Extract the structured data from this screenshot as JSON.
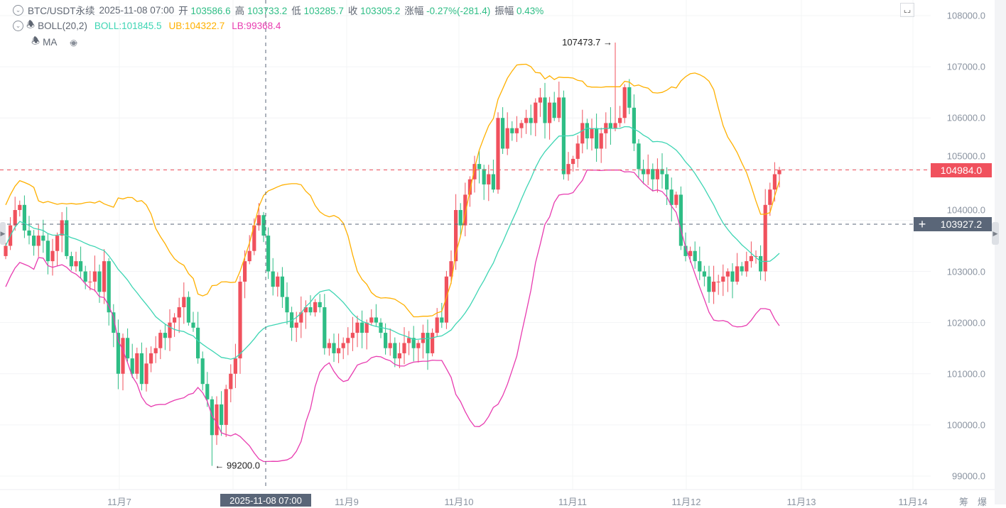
{
  "header": {
    "symbol": "BTC/USDT永续",
    "datetime": "2025-11-08 07:00",
    "open_label": "开",
    "open": "103586.6",
    "high_label": "高",
    "high": "103733.2",
    "low_label": "低",
    "low": "103285.7",
    "close_label": "收",
    "close": "103305.2",
    "change_label": "涨幅",
    "change": "-0.27%(-281.4)",
    "amplitude_label": "振幅",
    "amplitude": "0.43%"
  },
  "indicators": {
    "boll_name": "BOLL(20,2)",
    "boll": "BOLL:101845.5",
    "ub": "UB:104322.7",
    "lb": "LB:99368.4",
    "ma_name": "MA",
    "ma_icon": "eye-off-icon"
  },
  "footer": {
    "chip_label": "筹",
    "liq_label": "爆"
  },
  "colors": {
    "up": "#f0515d",
    "down": "#2ebd85",
    "mid": "#3dd5b3",
    "ub": "#ffb000",
    "lb": "#e83cb0",
    "crosshair": "#5a6678"
  },
  "chart_data": {
    "type": "candlestick",
    "interval": "1h",
    "yaxis_ticks": [
      "108000.0",
      "107000.0",
      "106000.0",
      "105000.0",
      "104000.0",
      "103000.0",
      "102000.0",
      "101000.0",
      "100000.0",
      "99000.0"
    ],
    "yaxis_tick_values": [
      108000,
      107000,
      106000,
      105000,
      104000,
      103000,
      102000,
      101000,
      100000,
      99000
    ],
    "ylim": [
      98990,
      108000
    ],
    "xaxis_ticks": [
      "11月7",
      "11月9",
      "11月10",
      "11月11",
      "11月12",
      "11月13",
      "11月14"
    ],
    "crosshair_time": "2025-11-08 07:00",
    "crosshair_price": "103927.2",
    "last_price": "104984.0",
    "max_label": "107473.7",
    "min_label": "99200.0",
    "bollinger": {
      "period": 20,
      "k": 2
    },
    "closes": [
      103500,
      103900,
      104200,
      104300,
      103800,
      103700,
      103500,
      103700,
      103600,
      103200,
      103400,
      103700,
      104000,
      103300,
      103100,
      103200,
      103000,
      102800,
      102800,
      103000,
      102600,
      103200,
      102200,
      101800,
      101000,
      101700,
      101300,
      101000,
      101400,
      100800,
      101200,
      101400,
      101500,
      101800,
      101700,
      102000,
      102100,
      102300,
      102500,
      102000,
      101900,
      101300,
      100800,
      100500,
      99800,
      100400,
      100000,
      100700,
      101000,
      101300,
      102800,
      103200,
      103400,
      103900,
      104100,
      103700,
      103000,
      102700,
      102900,
      102500,
      102200,
      101900,
      102000,
      102200,
      102300,
      102200,
      102400,
      102300,
      101500,
      101600,
      101400,
      101500,
      101600,
      101700,
      101800,
      102000,
      101800,
      102000,
      102100,
      102000,
      101800,
      101500,
      101600,
      101300,
      101400,
      101600,
      101700,
      101500,
      101600,
      101800,
      101400,
      101800,
      102100,
      102000,
      102900,
      103200,
      104200,
      103900,
      104500,
      104800,
      105100,
      105000,
      104700,
      104900,
      104600,
      106000,
      105400,
      105800,
      105700,
      105800,
      105900,
      106000,
      105900,
      106300,
      106400,
      105900,
      106300,
      106000,
      106400,
      104900,
      105100,
      105200,
      105500,
      105900,
      105600,
      105800,
      105400,
      105700,
      105900,
      105800,
      105900,
      106000,
      106600,
      106200,
      105500,
      105000,
      104900,
      105000,
      104800,
      105000,
      104900,
      104600,
      104300,
      104500,
      103500,
      103300,
      103400,
      103200,
      103000,
      102900,
      102600,
      102800,
      102800,
      102900,
      103000,
      102800,
      103100,
      103000,
      103200,
      103300,
      103300,
      103000,
      104300,
      104600,
      104900,
      104984
    ]
  }
}
